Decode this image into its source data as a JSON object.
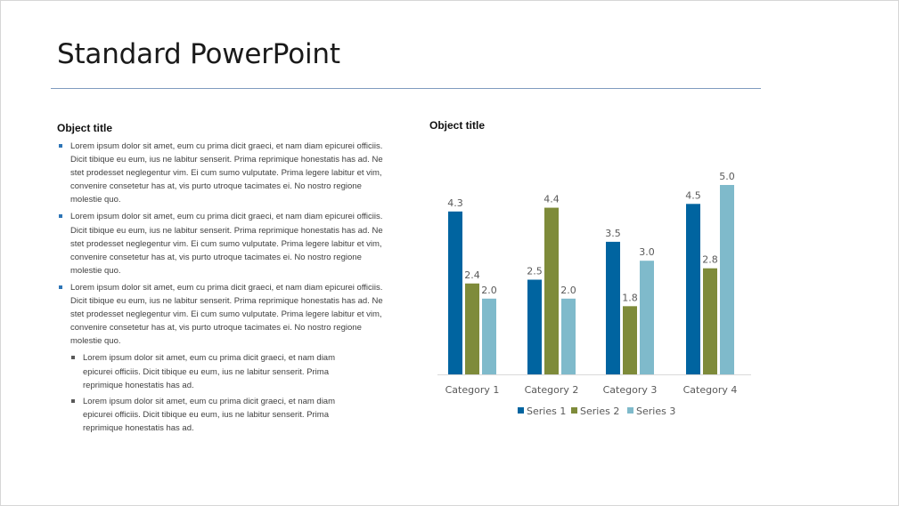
{
  "slide": {
    "title": "Standard PowerPoint",
    "left_title": "Object title",
    "right_title": "Object title",
    "bullets": [
      {
        "level": 1,
        "text": "Lorem ipsum dolor sit amet, eum cu prima dicit graeci, et nam diam epicurei officiis. Dicit tibique eu eum, ius ne labitur senserit. Prima reprimique honestatis has ad. Ne stet prodesset neglegentur vim. Ei cum sumo vulputate. Prima legere labitur et vim, convenire consetetur has at, vis purto utroque tacimates ei. No nostro regione molestie quo."
      },
      {
        "level": 1,
        "text": "Lorem ipsum dolor sit amet, eum cu prima dicit graeci, et nam diam epicurei officiis. Dicit tibique eu eum, ius ne labitur senserit. Prima reprimique honestatis has ad. Ne stet prodesset neglegentur vim. Ei cum sumo vulputate. Prima legere labitur et vim, convenire consetetur has at, vis purto utroque tacimates ei. No nostro regione molestie quo."
      },
      {
        "level": 1,
        "text": "Lorem ipsum dolor sit amet, eum cu prima dicit graeci, et nam diam epicurei officiis. Dicit tibique eu eum, ius ne labitur senserit. Prima reprimique honestatis has ad. Ne stet prodesset neglegentur vim. Ei cum sumo vulputate. Prima legere labitur et vim, convenire consetetur has at, vis purto utroque tacimates ei. No nostro regione molestie quo."
      },
      {
        "level": 2,
        "text": "Lorem ipsum dolor sit amet, eum cu prima dicit graeci, et nam diam epicurei officiis. Dicit tibique eu eum, ius ne labitur senserit. Prima reprimique honestatis has ad."
      },
      {
        "level": 2,
        "text": "Lorem ipsum dolor sit amet, eum cu prima dicit graeci, et nam diam epicurei officiis. Dicit tibique eu eum, ius ne labitur senserit. Prima reprimique honestatis has ad."
      }
    ]
  },
  "chart_data": {
    "type": "bar",
    "categories": [
      "Category 1",
      "Category 2",
      "Category 3",
      "Category 4"
    ],
    "series": [
      {
        "name": "Series 1",
        "values": [
          4.3,
          2.5,
          3.5,
          4.5
        ],
        "color": "#0064a0"
      },
      {
        "name": "Series 2",
        "values": [
          2.4,
          4.4,
          1.8,
          2.8
        ],
        "color": "#7e8b3a"
      },
      {
        "name": "Series 3",
        "values": [
          2.0,
          2.0,
          3.0,
          5.0
        ],
        "color": "#7fbacb"
      }
    ],
    "title": "",
    "xlabel": "",
    "ylabel": "",
    "ylim": [
      0,
      5
    ],
    "grid": false,
    "legend": "bottom",
    "data_labels": [
      "4.3",
      "2.5",
      "3.5",
      "4.5",
      "2.4",
      "4.4",
      "1.8",
      "2.8",
      "2.0",
      "2.0",
      "3.0",
      "5.0"
    ]
  },
  "colors": {
    "label": "#595959",
    "axis": "#d9d9d9",
    "rule": "#7f9cbf"
  }
}
